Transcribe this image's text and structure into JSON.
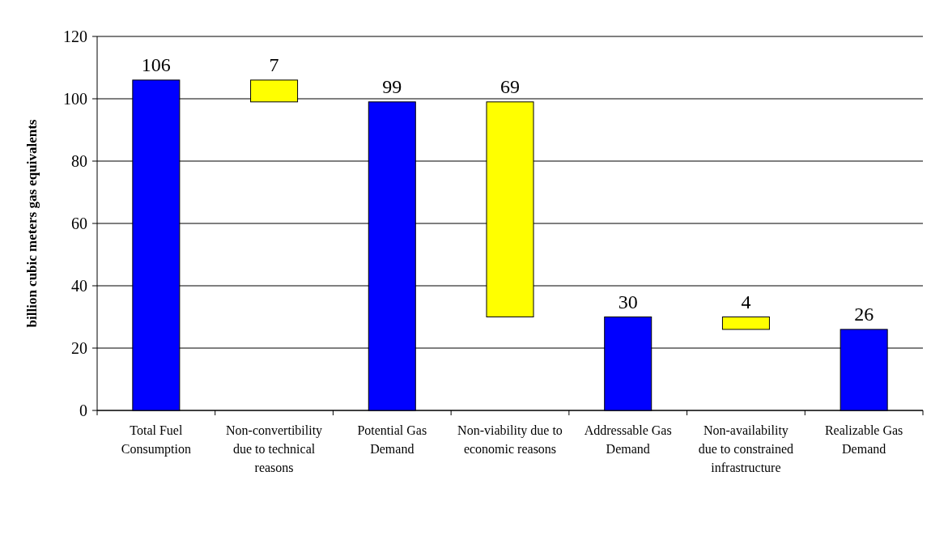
{
  "chart_data": {
    "type": "bar",
    "ylabel": "billion cubic meters gas equivalents",
    "categories": [
      "Total Fuel Consumption",
      "Non-convertibility due to technical reasons",
      "Potential Gas Demand",
      "Non-viability due to economic reasons",
      "Addressable Gas Demand",
      "Non-availability due to constrained infrastructure",
      "Realizable Gas Demand"
    ],
    "values": [
      106,
      7,
      99,
      69,
      30,
      4,
      26
    ],
    "base": [
      0,
      99,
      0,
      30,
      0,
      26,
      0
    ],
    "colors": [
      "#0000ff",
      "#ffff00",
      "#0000ff",
      "#ffff00",
      "#0000ff",
      "#ffff00",
      "#0000ff"
    ],
    "ylim": [
      0,
      120
    ],
    "yticks": [
      0,
      20,
      40,
      60,
      80,
      100,
      120
    ],
    "grid": "y",
    "data_labels": true
  }
}
